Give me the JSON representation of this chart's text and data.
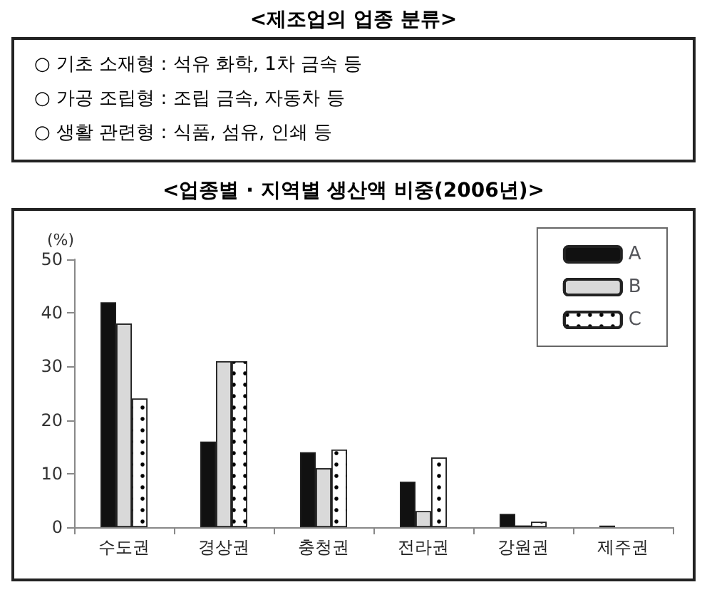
{
  "chart_data": [
    {
      "type": "other",
      "title": "<제조업의 업종 분류>",
      "annotations": [
        "○ 기초 소재형 : 석유 화학, 1차 금속 등",
        "○ 가공 조립형 : 조립 금속, 자동차 등",
        "○ 생활 관련형 : 식품, 섬유, 인쇄 등"
      ]
    },
    {
      "type": "bar",
      "title": "<업종별 · 지역별 생산액 비중(2006년)>",
      "ylabel": "(%)",
      "categories": [
        "수도권",
        "경상권",
        "충청권",
        "전라권",
        "강원권",
        "제주권"
      ],
      "series": [
        {
          "name": "A",
          "color": "#111111",
          "values": [
            42,
            16,
            14,
            8.5,
            2.5,
            0.3
          ]
        },
        {
          "name": "B",
          "color": "#d9d9d9",
          "values": [
            38,
            31,
            11,
            3,
            0.3,
            0
          ]
        },
        {
          "name": "C",
          "color": "#ffffff",
          "values": [
            24,
            31,
            14.5,
            13,
            1,
            0
          ]
        }
      ],
      "ylim": [
        0,
        50
      ],
      "yticks": [
        0,
        10,
        20,
        30,
        40,
        50
      ],
      "grid": false,
      "legend": "top right"
    }
  ]
}
